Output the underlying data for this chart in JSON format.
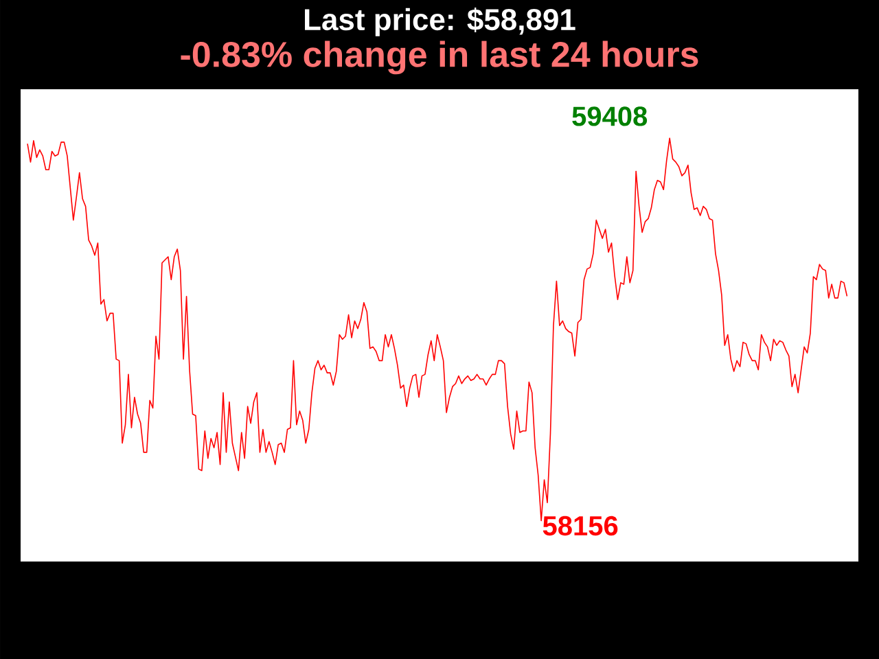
{
  "chart_data": {
    "type": "line",
    "title": "Last price: $58,891",
    "subtitle": "-0.83% change in last 24 hours",
    "color": "#ff0000",
    "categories": [
      null,
      null,
      null,
      null,
      null,
      null,
      null,
      null,
      null,
      null,
      null,
      null,
      null,
      null,
      null,
      null,
      null,
      null,
      null,
      null,
      null,
      null,
      null,
      null,
      null,
      null,
      null,
      null,
      null,
      null,
      null,
      null,
      null,
      null,
      null,
      null,
      null,
      null,
      null,
      null,
      null,
      null,
      null,
      null,
      null,
      null,
      null,
      null,
      null,
      null,
      null,
      null,
      null,
      null,
      null,
      null,
      null,
      null,
      null,
      null,
      null,
      null,
      null,
      null,
      null,
      null,
      null,
      null,
      null,
      null,
      null,
      null,
      null,
      null,
      null,
      null,
      null,
      null,
      null,
      null,
      null,
      null,
      null,
      null,
      null,
      null,
      null,
      null,
      null,
      null,
      null,
      null,
      null,
      null,
      null,
      null,
      null,
      null,
      null,
      null,
      null,
      null,
      null,
      null,
      null,
      null,
      null,
      null,
      null,
      null,
      null,
      null,
      null,
      null,
      null,
      null,
      null,
      null,
      null,
      null,
      null,
      null,
      null,
      null,
      null,
      null,
      null,
      null,
      null,
      null,
      null,
      null,
      null,
      null,
      null,
      null,
      null,
      null,
      null,
      null,
      null,
      null,
      null,
      null,
      null,
      null,
      null,
      null,
      null,
      null,
      null,
      null,
      null,
      null,
      null,
      null,
      null,
      null,
      null,
      null,
      null,
      null,
      null,
      null,
      null,
      null,
      null,
      null,
      null,
      null,
      null,
      null,
      null,
      null,
      null,
      null,
      null,
      null,
      null,
      null,
      null,
      null,
      null,
      null,
      null,
      null,
      null,
      null,
      null,
      null,
      null,
      null,
      null,
      null,
      null,
      null,
      null,
      null,
      null,
      null,
      null,
      null,
      null,
      null,
      null,
      null,
      null,
      null,
      null,
      null,
      null,
      null,
      null,
      null,
      null,
      null,
      null,
      null,
      null,
      null,
      null,
      null,
      null,
      null,
      null,
      null,
      null,
      null,
      null,
      null,
      null,
      null,
      null,
      null,
      null,
      null,
      null,
      null,
      null,
      null,
      null,
      null,
      null,
      null,
      null,
      null,
      null,
      null,
      null,
      null,
      null,
      null,
      null,
      null,
      null,
      null,
      null,
      null,
      null,
      null,
      null,
      null,
      null,
      null,
      null,
      null,
      null,
      null,
      null
    ],
    "values": [
      59390,
      59330,
      59400,
      59345,
      59370,
      59350,
      59305,
      59305,
      59365,
      59350,
      59355,
      59395,
      59395,
      59350,
      59245,
      59140,
      59215,
      59295,
      59210,
      59185,
      59075,
      59055,
      59025,
      59065,
      58865,
      58880,
      58810,
      58835,
      58835,
      58685,
      58680,
      58410,
      58470,
      58635,
      58460,
      58560,
      58505,
      58475,
      58380,
      58380,
      58550,
      58525,
      58760,
      58685,
      59000,
      59010,
      59020,
      58945,
      59020,
      59045,
      58975,
      58685,
      58890,
      58650,
      58505,
      58500,
      58325,
      58320,
      58450,
      58360,
      58425,
      58395,
      58445,
      58340,
      58575,
      58380,
      58545,
      58410,
      58365,
      58320,
      58445,
      58360,
      58530,
      58475,
      58545,
      58575,
      58380,
      58455,
      58380,
      58415,
      58380,
      58340,
      58405,
      58410,
      58380,
      58455,
      58460,
      58680,
      58470,
      58515,
      58485,
      58410,
      58455,
      58575,
      58655,
      58680,
      58650,
      58665,
      58640,
      58640,
      58600,
      58645,
      58765,
      58750,
      58760,
      58830,
      58755,
      58810,
      58785,
      58815,
      58870,
      58840,
      58720,
      58725,
      58710,
      58680,
      58680,
      58765,
      58725,
      58765,
      58720,
      58665,
      58590,
      58600,
      58530,
      58590,
      58630,
      58635,
      58560,
      58630,
      58635,
      58700,
      58745,
      58680,
      58765,
      58725,
      58680,
      58510,
      58560,
      58595,
      58605,
      58630,
      58605,
      58620,
      58630,
      58615,
      58620,
      58635,
      58620,
      58620,
      58600,
      58620,
      58635,
      58635,
      58680,
      58680,
      58670,
      58530,
      58440,
      58390,
      58515,
      58445,
      58450,
      58450,
      58610,
      58575,
      58395,
      58305,
      58156,
      58290,
      58215,
      58440,
      58795,
      58940,
      58795,
      58810,
      58785,
      58775,
      58770,
      58695,
      58805,
      58815,
      58945,
      58980,
      58985,
      59030,
      59140,
      59110,
      59080,
      59110,
      59035,
      59065,
      58960,
      58880,
      58935,
      58930,
      59020,
      58935,
      58975,
      59300,
      59185,
      59100,
      59135,
      59145,
      59180,
      59240,
      59270,
      59265,
      59240,
      59335,
      59408,
      59340,
      59330,
      59315,
      59285,
      59295,
      59320,
      59230,
      59175,
      59180,
      59155,
      59185,
      59175,
      59145,
      59140,
      59030,
      58975,
      58895,
      58730,
      58765,
      58685,
      58645,
      58680,
      58660,
      58740,
      58735,
      58700,
      58680,
      58680,
      58650,
      58765,
      58740,
      58725,
      58680,
      58750,
      58730,
      58745,
      58740,
      58715,
      58695,
      58595,
      58635,
      58575,
      58650,
      58725,
      58705,
      58770,
      58955,
      58945,
      58995,
      58980,
      58975,
      58885,
      58930,
      58885,
      58885,
      58940,
      58935,
      58891
    ],
    "value_labels": [
      null,
      null,
      null,
      null,
      null,
      null,
      null,
      null,
      null,
      null,
      null,
      null,
      null,
      null,
      null,
      null,
      null,
      null,
      null,
      null,
      null,
      null,
      null,
      null,
      null,
      null,
      null,
      null,
      null,
      null,
      null,
      null,
      null,
      null,
      null,
      null,
      null,
      null,
      null,
      null,
      null,
      null,
      null,
      null,
      null,
      null,
      null,
      null,
      null,
      null,
      null,
      null,
      null,
      null,
      null,
      null,
      null,
      null,
      null,
      null,
      null,
      null,
      null,
      null,
      null,
      null,
      null,
      null,
      null,
      null,
      null,
      null,
      null,
      null,
      null,
      null,
      null,
      null,
      null,
      null,
      null,
      null,
      null,
      null,
      null,
      null,
      null,
      null,
      null,
      null,
      null,
      null,
      null,
      null,
      null,
      null,
      null,
      null,
      null,
      null,
      null,
      null,
      null,
      null,
      null,
      null,
      null,
      null,
      null,
      null,
      null,
      null,
      null,
      null,
      null,
      null,
      null,
      null,
      null,
      null,
      null,
      null,
      null,
      null,
      null,
      null,
      null,
      null,
      null,
      null,
      null,
      null,
      null,
      null,
      null,
      null,
      null,
      null,
      null,
      null,
      null,
      null,
      null,
      null,
      null,
      null,
      null,
      null,
      null,
      null,
      null,
      null,
      null,
      null,
      null,
      null,
      null,
      null,
      null,
      null,
      null,
      null,
      null,
      null,
      null,
      null,
      null,
      null,
      "58156",
      null,
      null,
      null,
      null,
      null,
      null,
      null,
      null,
      null,
      null,
      null,
      null,
      null,
      null,
      null,
      null,
      null,
      null,
      null,
      null,
      null,
      null,
      null,
      null,
      null,
      null,
      null,
      null,
      null,
      null,
      null,
      null,
      null,
      null,
      null,
      null,
      null,
      null,
      null,
      null,
      null,
      "59408",
      null,
      null,
      null,
      null,
      null,
      null,
      null,
      null,
      null,
      null,
      null,
      null,
      null,
      null,
      null,
      null,
      null,
      null,
      null,
      null,
      null,
      null,
      null,
      null,
      null,
      null,
      null,
      null,
      null,
      null,
      null,
      null,
      null,
      null,
      null,
      null,
      null,
      null,
      null,
      null,
      null,
      null,
      null,
      null,
      null,
      null,
      null,
      null,
      null,
      null,
      null,
      null,
      null,
      null,
      null,
      null,
      null,
      null
    ]
  }
}
